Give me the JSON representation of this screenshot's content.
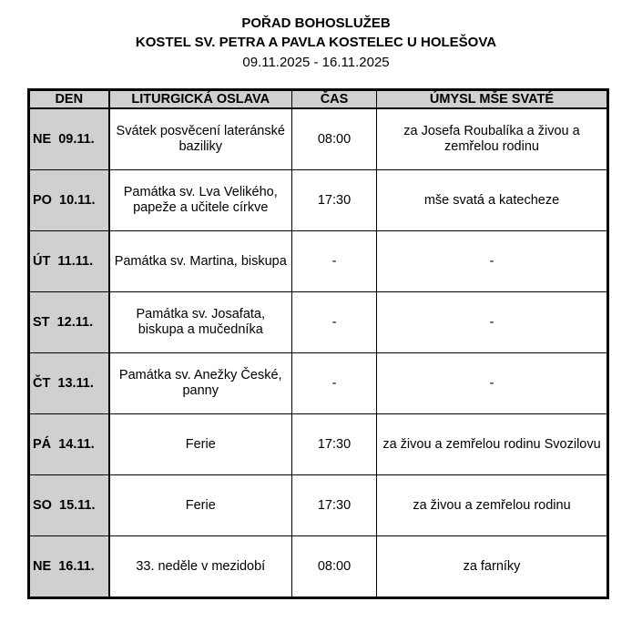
{
  "header": {
    "title": "POŘAD BOHOSLUŽEB",
    "subtitle": "KOSTEL SV. PETRA A PAVLA KOSTELEC U HOLEŠOVA",
    "date_range": "09.11.2025 - 16.11.2025"
  },
  "table": {
    "columns": [
      "DEN",
      "LITURGICKÁ OSLAVA",
      "ČAS",
      "ÚMYSL MŠE SVATÉ"
    ],
    "rows": [
      {
        "day": "NE  09.11.",
        "celebration": "Svátek posvěcení lateránské baziliky",
        "time": "08:00",
        "intention": "za Josefa Roubalíka a živou a zemřelou rodinu"
      },
      {
        "day": "PO  10.11.",
        "celebration": "Památka sv. Lva Velikého, papeže a učitele církve",
        "time": "17:30",
        "intention": "mše svatá a katecheze"
      },
      {
        "day": "ÚT  11.11.",
        "celebration": "Památka sv. Martina, biskupa",
        "time": "-",
        "intention": "-"
      },
      {
        "day": "ST  12.11.",
        "celebration": "Památka sv. Josafata, biskupa a mučedníka",
        "time": "-",
        "intention": "-"
      },
      {
        "day": "ČT  13.11.",
        "celebration": "Památka sv. Anežky České, panny",
        "time": "-",
        "intention": "-"
      },
      {
        "day": "PÁ  14.11.",
        "celebration": "Ferie",
        "time": "17:30",
        "intention": "za živou a zemřelou rodinu Svozilovu"
      },
      {
        "day": "SO  15.11.",
        "celebration": "Ferie",
        "time": "17:30",
        "intention": "za živou a zemřelou rodinu"
      },
      {
        "day": "NE  16.11.",
        "celebration": "33. neděle v mezidobí",
        "time": "08:00",
        "intention": "za farníky"
      }
    ]
  },
  "colors": {
    "shade": "#d0d0d0",
    "border": "#000000"
  }
}
